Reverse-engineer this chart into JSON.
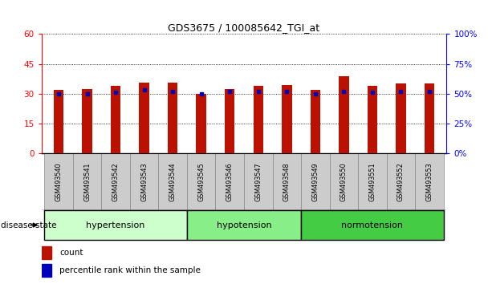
{
  "title": "GDS3675 / 100085642_TGI_at",
  "samples": [
    "GSM493540",
    "GSM493541",
    "GSM493542",
    "GSM493543",
    "GSM493544",
    "GSM493545",
    "GSM493546",
    "GSM493547",
    "GSM493548",
    "GSM493549",
    "GSM493550",
    "GSM493551",
    "GSM493552",
    "GSM493553"
  ],
  "count_values": [
    32,
    32.5,
    34,
    35.5,
    35.5,
    30,
    32.5,
    34,
    34.5,
    32,
    39,
    34,
    35,
    35
  ],
  "percentile_values": [
    50,
    50,
    51,
    53,
    52,
    50,
    52,
    52,
    52,
    50,
    52,
    51,
    52,
    52
  ],
  "groups": [
    {
      "label": "hypertension",
      "start": 0,
      "end": 5,
      "color": "#ccffcc"
    },
    {
      "label": "hypotension",
      "start": 5,
      "end": 9,
      "color": "#88ee88"
    },
    {
      "label": "normotension",
      "start": 9,
      "end": 14,
      "color": "#44cc44"
    }
  ],
  "bar_color": "#bb1100",
  "dot_color": "#0000bb",
  "left_ylim": [
    0,
    60
  ],
  "right_ylim": [
    0,
    100
  ],
  "left_yticks": [
    0,
    15,
    30,
    45,
    60
  ],
  "right_yticks": [
    0,
    25,
    50,
    75,
    100
  ],
  "left_ytick_labels": [
    "0",
    "15",
    "30",
    "45",
    "60"
  ],
  "right_ytick_labels": [
    "0%",
    "25%",
    "50%",
    "75%",
    "100%"
  ],
  "bar_width": 0.35,
  "label_box_color": "#cccccc",
  "disease_state_label": "disease state",
  "legend_count_label": "count",
  "legend_pct_label": "percentile rank within the sample"
}
